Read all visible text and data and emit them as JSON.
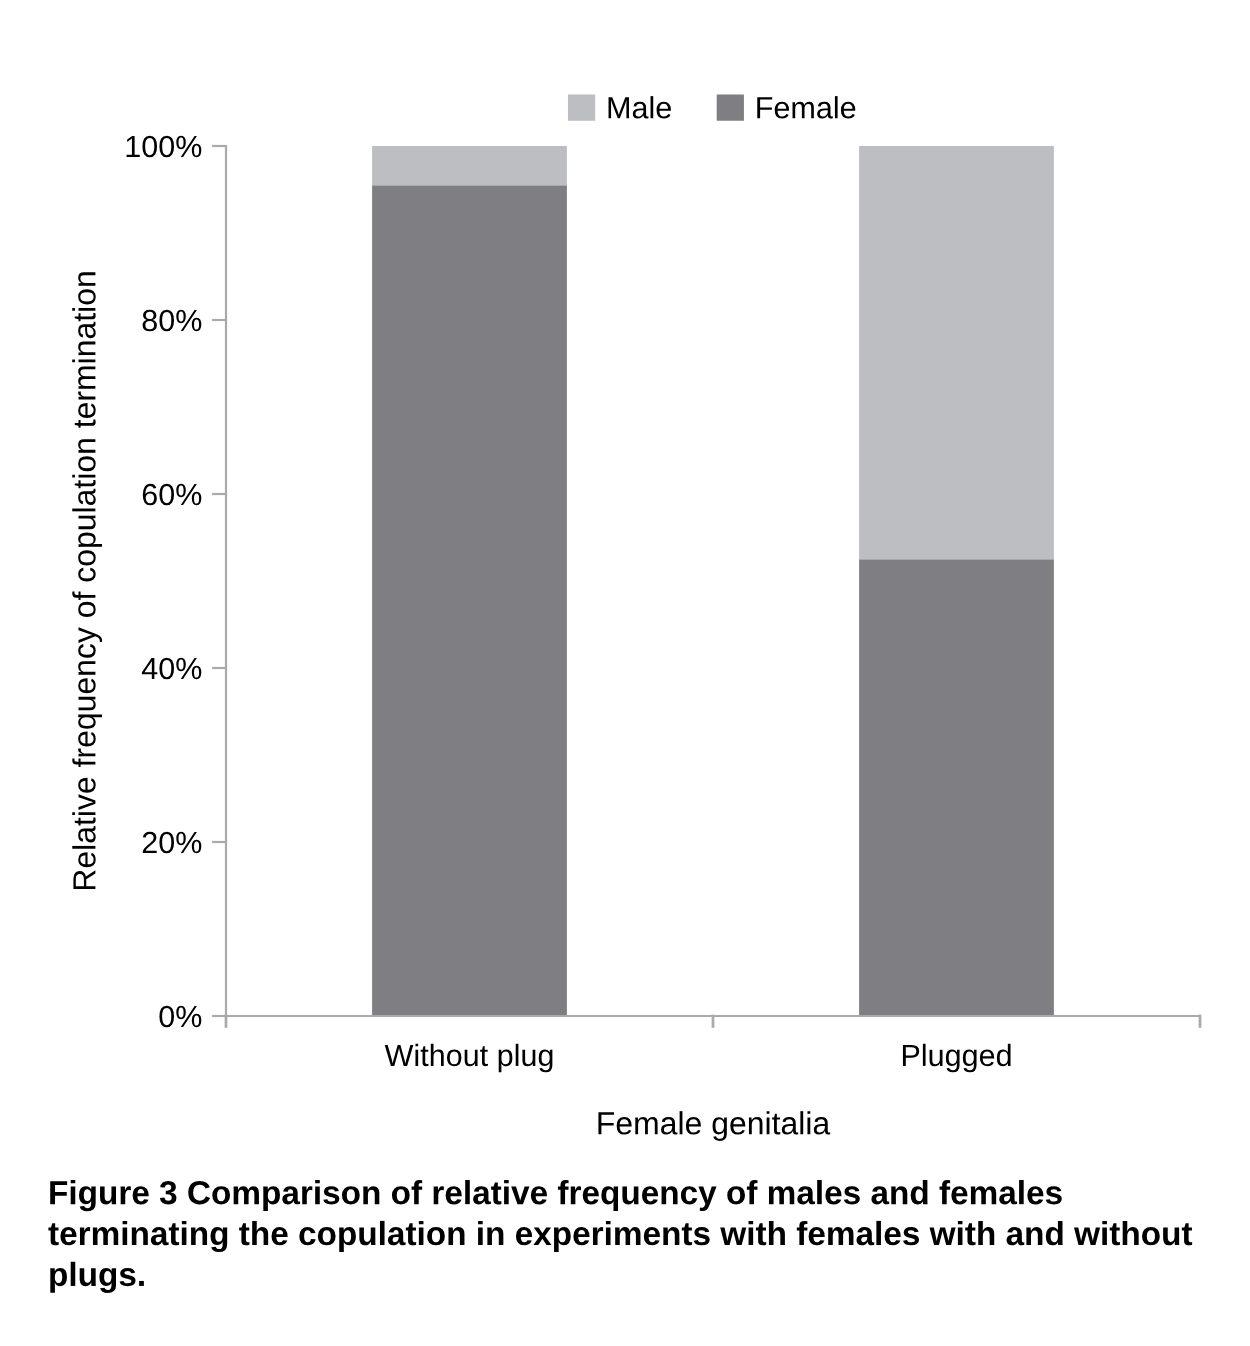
{
  "chart_data": {
    "type": "bar",
    "stacked": true,
    "xlabel": "Female genitalia",
    "ylabel": "Relative frequency of copulation termination",
    "categories": [
      "Without plug",
      "Plugged"
    ],
    "series": [
      {
        "name": "Female",
        "color": "#7f7f83",
        "values": [
          95.5,
          52.5
        ]
      },
      {
        "name": "Male",
        "color": "#bdbec2",
        "values": [
          4.5,
          47.5
        ]
      }
    ],
    "ylim": [
      0,
      100
    ],
    "yticks": [
      {
        "value": 0,
        "label": "0%"
      },
      {
        "value": 20,
        "label": "20%"
      },
      {
        "value": 40,
        "label": "40%"
      },
      {
        "value": 60,
        "label": "60%"
      },
      {
        "value": 80,
        "label": "80%"
      },
      {
        "value": 100,
        "label": "100%"
      }
    ],
    "grid": false,
    "legend": "top",
    "annotations": [
      "Figure 3 Comparison of relative frequency of males and females terminating the copulation in experiments with females with and without plugs."
    ]
  }
}
